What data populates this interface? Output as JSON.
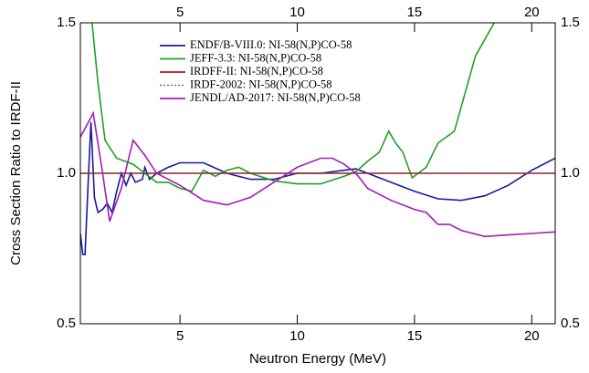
{
  "chart_data": {
    "type": "line",
    "xlabel": "Neutron Energy (MeV)",
    "ylabel": "Cross Section Ratio to IRDF-II",
    "xlim": [
      0.75,
      21
    ],
    "xticks": [
      5,
      10,
      15,
      20
    ],
    "ylim": [
      0.5,
      1.5
    ],
    "yticks": [
      0.5,
      {
        "value": 1,
        "label": "1.0"
      },
      1.5
    ],
    "legend": "upper left",
    "series": [
      {
        "name": "ENDF/B-VIII.0: NI-58(N,P)CO-58",
        "color": "#1a1aa0",
        "linestyle": "solid",
        "x": [
          0.75,
          0.85,
          0.95,
          1.1,
          1.2,
          1.35,
          1.5,
          1.7,
          1.9,
          2.1,
          2.3,
          2.5,
          2.7,
          2.9,
          3.1,
          3.4,
          3.5,
          3.7,
          4,
          4.5,
          5,
          6,
          7,
          8,
          9,
          10,
          11,
          12,
          12.5,
          13,
          14,
          15,
          16,
          17,
          18,
          19,
          20,
          21
        ],
        "values": [
          0.8,
          0.73,
          0.73,
          1.0,
          1.17,
          0.92,
          0.87,
          0.88,
          0.9,
          0.87,
          0.94,
          1.0,
          0.96,
          1.0,
          0.97,
          0.98,
          1.02,
          0.98,
          1.0,
          1.02,
          1.035,
          1.035,
          1.0,
          0.98,
          0.98,
          1.0,
          1.0,
          1.01,
          1.015,
          1.0,
          0.97,
          0.94,
          0.915,
          0.91,
          0.925,
          0.96,
          1.01,
          1.05
        ]
      },
      {
        "name": "JEFF-3.3: NI-58(N,P)CO-58",
        "color": "#22a022",
        "linestyle": "solid",
        "x": [
          1.25,
          1.5,
          1.8,
          2.3,
          3,
          3.5,
          4,
          4.5,
          5,
          5.5,
          6,
          6.5,
          7,
          7.5,
          8,
          9,
          10,
          11,
          12,
          12.5,
          13,
          13.5,
          13.9,
          14.2,
          14.5,
          14.9,
          15.5,
          16,
          16.7,
          17.6,
          18.4
        ],
        "values": [
          1.5,
          1.3,
          1.11,
          1.05,
          1.03,
          1.0,
          0.97,
          0.97,
          0.95,
          0.94,
          1.01,
          0.99,
          1.01,
          1.02,
          1.0,
          0.975,
          0.965,
          0.965,
          0.99,
          1.005,
          1.04,
          1.07,
          1.14,
          1.1,
          1.07,
          0.985,
          1.02,
          1.1,
          1.14,
          1.39,
          1.5
        ]
      },
      {
        "name": "IRDFF-II: NI-58(N,P)CO-58",
        "color": "#b01818",
        "linestyle": "solid",
        "x": [
          0.75,
          21
        ],
        "values": [
          1,
          1
        ]
      },
      {
        "name": "IRDF-2002: NI-58(N,P)CO-58",
        "color": "#555555",
        "linestyle": "dotted",
        "x": [
          0.75,
          21
        ],
        "values": [
          1,
          1
        ]
      },
      {
        "name": "JENDL/AD-2017: NI-58(N,P)CO-58",
        "color": "#a020b0",
        "linestyle": "solid",
        "x": [
          0.75,
          1.3,
          1.7,
          2.0,
          2.5,
          3.0,
          3.5,
          4.0,
          5,
          6,
          7,
          8,
          9,
          10,
          11,
          11.5,
          12,
          12.5,
          13,
          14,
          15,
          15.5,
          16,
          16.5,
          17,
          18,
          19,
          20,
          21
        ],
        "values": [
          1.12,
          1.2,
          1.0,
          0.84,
          0.95,
          1.11,
          1.06,
          1.0,
          0.96,
          0.91,
          0.895,
          0.92,
          0.97,
          1.02,
          1.05,
          1.05,
          1.03,
          1.0,
          0.95,
          0.91,
          0.88,
          0.87,
          0.83,
          0.83,
          0.81,
          0.79,
          0.795,
          0.8,
          0.805
        ]
      }
    ]
  }
}
